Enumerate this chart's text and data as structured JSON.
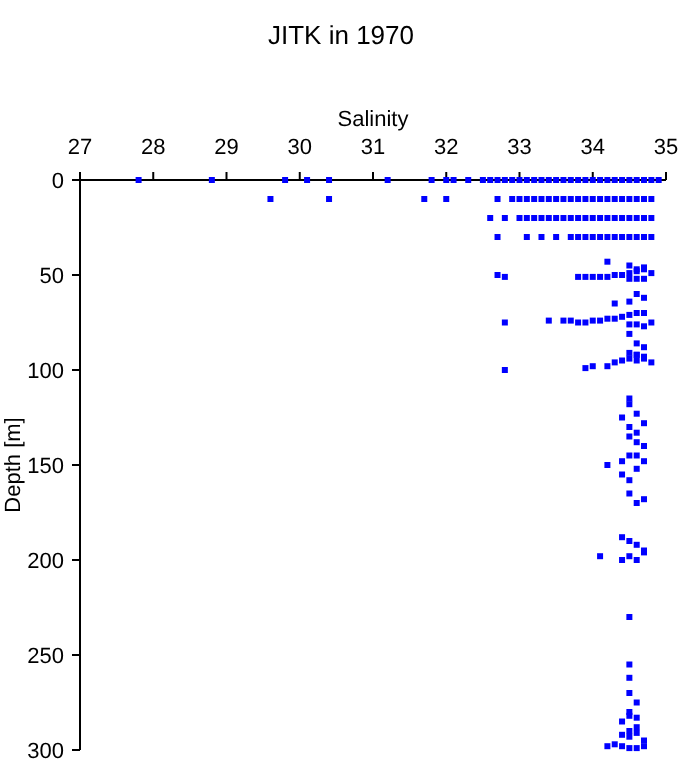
{
  "chart_data": {
    "type": "scatter",
    "title": "JITK in 1970",
    "xlabel": "Salinity",
    "ylabel": "Depth [m]",
    "xlim": [
      27,
      35
    ],
    "xticks": [
      27,
      28,
      29,
      30,
      31,
      32,
      33,
      34,
      35
    ],
    "ylim": [
      300,
      0
    ],
    "yticks": [
      0,
      50,
      100,
      150,
      200,
      250,
      300
    ],
    "marker": "square",
    "grid": false,
    "series": [
      {
        "color": "#0000ff",
        "x": [
          27.8,
          28.8,
          29.8,
          30.1,
          30.4,
          31.2,
          31.8,
          32.0,
          32.1,
          32.3,
          32.5,
          32.6,
          32.7,
          32.8,
          32.9,
          33.0,
          33.1,
          33.2,
          33.3,
          33.4,
          33.5,
          33.6,
          33.7,
          33.8,
          33.9,
          34.0,
          34.1,
          34.2,
          34.3,
          34.4,
          34.5,
          34.6,
          34.7,
          34.8,
          34.9,
          29.6,
          30.4,
          31.7,
          32.0,
          32.7,
          32.9,
          33.0,
          33.1,
          33.2,
          33.3,
          33.4,
          33.5,
          33.6,
          33.7,
          33.8,
          33.9,
          34.0,
          34.1,
          34.2,
          34.3,
          34.4,
          34.5,
          34.6,
          34.7,
          34.8,
          32.6,
          32.8,
          33.0,
          33.1,
          33.2,
          33.3,
          33.4,
          33.5,
          33.6,
          33.7,
          33.8,
          33.9,
          34.0,
          34.1,
          34.2,
          34.3,
          34.4,
          34.5,
          34.6,
          34.7,
          34.8,
          32.7,
          33.1,
          33.3,
          33.5,
          33.7,
          33.8,
          33.9,
          34.0,
          34.1,
          34.2,
          34.3,
          34.4,
          34.5,
          34.6,
          34.7,
          34.8,
          34.2,
          34.5,
          34.6,
          34.7,
          32.7,
          32.8,
          33.8,
          33.9,
          34.0,
          34.1,
          34.2,
          34.3,
          34.4,
          34.5,
          34.6,
          34.7,
          34.8,
          34.5,
          34.6,
          34.7,
          34.3,
          34.5,
          34.6,
          34.7,
          32.8,
          33.4,
          33.6,
          33.7,
          33.8,
          33.9,
          34.0,
          34.1,
          34.2,
          34.3,
          34.4,
          34.5,
          34.6,
          34.7,
          34.8,
          34.5,
          34.6,
          34.7,
          34.5,
          34.6,
          34.7,
          34.6,
          32.8,
          33.9,
          34.0,
          34.2,
          34.3,
          34.4,
          34.5,
          34.6,
          34.7,
          34.8,
          34.5,
          34.6,
          34.7,
          34.5,
          34.5,
          34.6,
          34.4,
          34.5,
          34.6,
          34.7,
          34.5,
          34.6,
          34.7,
          34.2,
          34.4,
          34.5,
          34.6,
          34.7,
          34.4,
          34.5,
          34.6,
          34.5,
          34.6,
          34.7,
          34.4,
          34.5,
          34.6,
          34.7,
          34.1,
          34.4,
          34.5,
          34.6,
          34.7,
          34.5,
          34.5,
          34.5,
          34.5,
          34.6,
          34.5,
          34.6,
          34.4,
          34.5,
          34.6,
          34.5,
          34.4,
          34.5,
          34.6,
          34.7,
          34.2,
          34.3,
          34.4,
          34.5,
          34.6,
          34.7
        ],
        "values": [
          0,
          0,
          0,
          0,
          0,
          0,
          0,
          0,
          0,
          0,
          0,
          0,
          0,
          0,
          0,
          0,
          0,
          0,
          0,
          0,
          0,
          0,
          0,
          0,
          0,
          0,
          0,
          0,
          0,
          0,
          0,
          0,
          0,
          0,
          0,
          10,
          10,
          10,
          10,
          10,
          10,
          10,
          10,
          10,
          10,
          10,
          10,
          10,
          10,
          10,
          10,
          10,
          10,
          10,
          10,
          10,
          10,
          10,
          10,
          10,
          20,
          20,
          20,
          20,
          20,
          20,
          20,
          20,
          20,
          20,
          20,
          20,
          20,
          20,
          20,
          20,
          20,
          20,
          20,
          20,
          20,
          30,
          30,
          30,
          30,
          30,
          30,
          30,
          30,
          30,
          30,
          30,
          30,
          30,
          30,
          30,
          30,
          43,
          45,
          47,
          46,
          50,
          51,
          51,
          51,
          51,
          51,
          51,
          50,
          50,
          49,
          48,
          47,
          49,
          52,
          52,
          52,
          65,
          64,
          60,
          62,
          75,
          74,
          74,
          74,
          75,
          75,
          74,
          74,
          73,
          73,
          72,
          71,
          70,
          70,
          75,
          76,
          76,
          77,
          81,
          86,
          88,
          92,
          100,
          99,
          98,
          98,
          96,
          95,
          94,
          95,
          94,
          96,
          91,
          92,
          93,
          115,
          118,
          123,
          125,
          130,
          133,
          128,
          135,
          138,
          140,
          150,
          148,
          145,
          145,
          148,
          155,
          158,
          152,
          165,
          170,
          168,
          188,
          190,
          192,
          195,
          198,
          200,
          198,
          200,
          196,
          230,
          255,
          262,
          270,
          275,
          280,
          283,
          285,
          282,
          288,
          290,
          292,
          293,
          291,
          295,
          298,
          297,
          298,
          299,
          299,
          298
        ]
      }
    ]
  }
}
